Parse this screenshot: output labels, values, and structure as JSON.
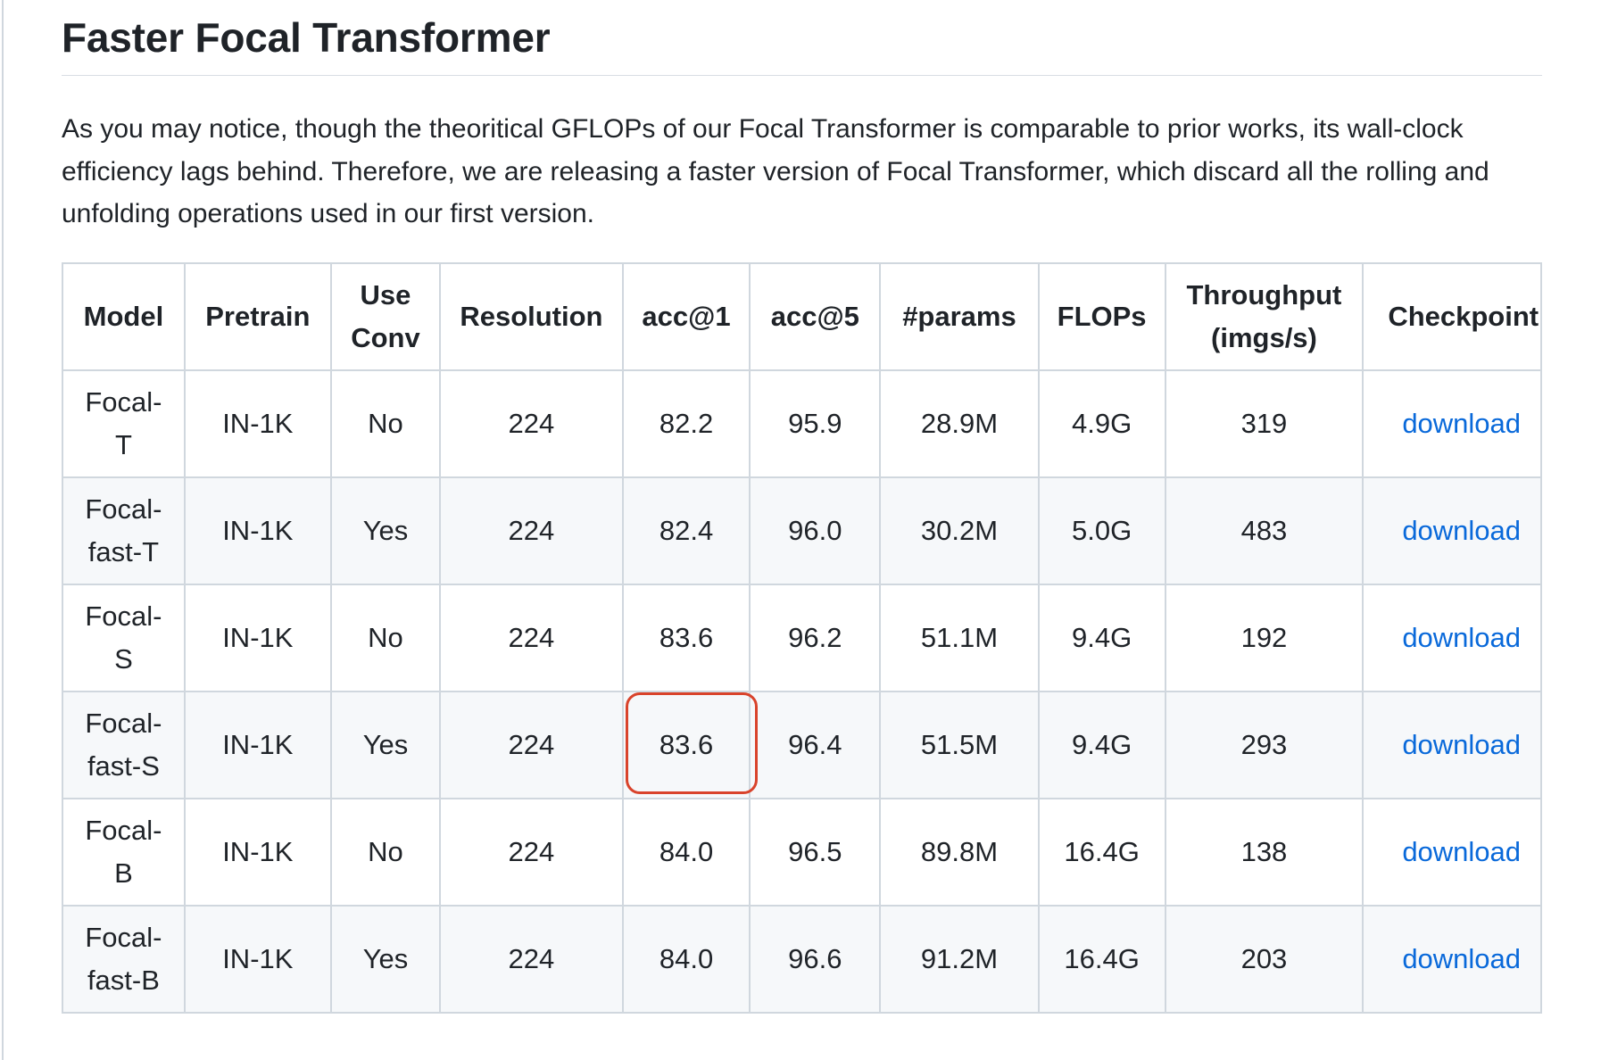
{
  "section": {
    "title": "Faster Focal Transformer",
    "intro": "As you may notice, though the theoritical GFLOPs of our Focal Transformer is comparable to prior works, its wall-clock efficiency lags behind. Therefore, we are releasing a faster version of Focal Transformer, which discard all the rolling and unfolding operations used in our first version."
  },
  "table": {
    "headers": {
      "model": "Model",
      "pretrain": "Pretrain",
      "use_conv_1": "Use",
      "use_conv_2": "Conv",
      "resolution": "Resolution",
      "acc1": "acc@1",
      "acc5": "acc@5",
      "params": "#params",
      "flops": "FLOPs",
      "throughput_1": "Throughput",
      "throughput_2": "(imgs/s)",
      "checkpoint": "Checkpoint"
    },
    "rows": [
      {
        "model_1": "Focal-",
        "model_2": "T",
        "pretrain": "IN-1K",
        "use_conv": "No",
        "resolution": "224",
        "acc1": "82.2",
        "acc5": "95.9",
        "params": "28.9M",
        "flops": "4.9G",
        "throughput": "319",
        "checkpoint": "download"
      },
      {
        "model_1": "Focal-",
        "model_2": "fast-T",
        "pretrain": "IN-1K",
        "use_conv": "Yes",
        "resolution": "224",
        "acc1": "82.4",
        "acc5": "96.0",
        "params": "30.2M",
        "flops": "5.0G",
        "throughput": "483",
        "checkpoint": "download"
      },
      {
        "model_1": "Focal-",
        "model_2": "S",
        "pretrain": "IN-1K",
        "use_conv": "No",
        "resolution": "224",
        "acc1": "83.6",
        "acc5": "96.2",
        "params": "51.1M",
        "flops": "9.4G",
        "throughput": "192",
        "checkpoint": "download"
      },
      {
        "model_1": "Focal-",
        "model_2": "fast-S",
        "pretrain": "IN-1K",
        "use_conv": "Yes",
        "resolution": "224",
        "acc1": "83.6",
        "acc5": "96.4",
        "params": "51.5M",
        "flops": "9.4G",
        "throughput": "293",
        "checkpoint": "download"
      },
      {
        "model_1": "Focal-",
        "model_2": "B",
        "pretrain": "IN-1K",
        "use_conv": "No",
        "resolution": "224",
        "acc1": "84.0",
        "acc5": "96.5",
        "params": "89.8M",
        "flops": "16.4G",
        "throughput": "138",
        "checkpoint": "download"
      },
      {
        "model_1": "Focal-",
        "model_2": "fast-B",
        "pretrain": "IN-1K",
        "use_conv": "Yes",
        "resolution": "224",
        "acc1": "84.0",
        "acc5": "96.6",
        "params": "91.2M",
        "flops": "16.4G",
        "throughput": "203",
        "checkpoint": "download"
      }
    ]
  },
  "colors": {
    "link": "#0969da",
    "highlight": "#d9432b",
    "border": "#d0d7de",
    "stripe": "#f6f8fa"
  }
}
